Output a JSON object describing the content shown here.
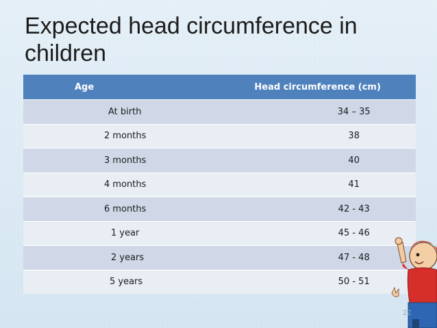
{
  "slide": {
    "title": "Expected head circumference in children",
    "page_number": "22"
  },
  "table": {
    "headers": {
      "age": "Age",
      "circumference": "Head circumference   (cm)"
    },
    "rows": [
      {
        "age": "At birth",
        "circumference": "34 – 35"
      },
      {
        "age": "2 months",
        "circumference": "38"
      },
      {
        "age": "3 months",
        "circumference": "40"
      },
      {
        "age": "4 months",
        "circumference": "41"
      },
      {
        "age": "6 months",
        "circumference": "42 - 43"
      },
      {
        "age": "1 year",
        "circumference": "45 - 46"
      },
      {
        "age": "2 years",
        "circumference": "47 - 48"
      },
      {
        "age": "5 years",
        "circumference": "50 - 51"
      }
    ]
  },
  "colors": {
    "header_bg": "#4f81bd",
    "row_odd": "#d0d8e8",
    "row_even": "#e9edf4"
  }
}
